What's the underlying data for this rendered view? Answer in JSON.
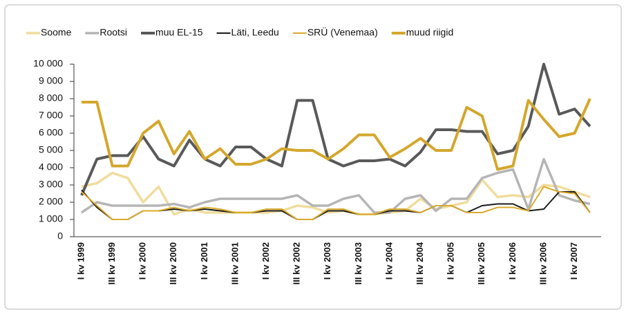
{
  "chart_data": {
    "type": "line",
    "categories": [
      "I kv 1999",
      null,
      "III kv 1999",
      null,
      "I kv 2000",
      null,
      "III kv 2000",
      null,
      "I kv 2001",
      null,
      "III kv 2001",
      null,
      "I kv 2002",
      null,
      "III kv 2002",
      null,
      "I kv 2003",
      null,
      "III kv 2003",
      null,
      "I kv 2004",
      null,
      "III kv 2004",
      null,
      "I kv 2005",
      null,
      "III kv 2005",
      null,
      "I kv 2006",
      null,
      "III kv 2006",
      null,
      "I kv 2007",
      null
    ],
    "series": [
      {
        "name": "Soome",
        "color": "#f0dc9c",
        "width": 3.5,
        "values": [
          2900,
          3100,
          3700,
          3400,
          2000,
          2900,
          1300,
          1600,
          1400,
          1400,
          1400,
          1400,
          1400,
          1500,
          1800,
          1700,
          1400,
          1500,
          1300,
          1300,
          1400,
          1500,
          2200,
          1600,
          1800,
          2000,
          3300,
          2300,
          2400,
          2300,
          3000,
          2900,
          2600,
          2300
        ]
      },
      {
        "name": "Rootsi",
        "color": "#b5b5b5",
        "width": 3.5,
        "values": [
          1400,
          2000,
          1800,
          1800,
          1800,
          1800,
          1900,
          1700,
          2000,
          2200,
          2200,
          2200,
          2200,
          2200,
          2400,
          1800,
          1800,
          2200,
          2400,
          1400,
          1400,
          2200,
          2400,
          1500,
          2200,
          2200,
          3400,
          3700,
          3900,
          1600,
          4500,
          2400,
          2100,
          1900
        ]
      },
      {
        "name": "muu EL-15",
        "color": "#595959",
        "width": 4,
        "values": [
          2400,
          4500,
          4700,
          4700,
          5800,
          4500,
          4100,
          5600,
          4500,
          4100,
          5200,
          5200,
          4500,
          4100,
          7900,
          7900,
          4500,
          4100,
          4400,
          4400,
          4500,
          4100,
          4900,
          6200,
          6200,
          6100,
          6100,
          4800,
          5000,
          6400,
          10000,
          7100,
          7400,
          6400
        ]
      },
      {
        "name": "Läti, Leedu",
        "color": "#1a1a1a",
        "width": 2,
        "values": [
          2700,
          1700,
          1000,
          1000,
          1500,
          1500,
          1600,
          1500,
          1600,
          1500,
          1400,
          1400,
          1500,
          1500,
          1000,
          1000,
          1500,
          1500,
          1300,
          1300,
          1500,
          1500,
          1400,
          1800,
          1800,
          1400,
          1800,
          1900,
          1900,
          1500,
          1600,
          2600,
          2600,
          1400
        ]
      },
      {
        "name": "SRÜ (Venemaa)",
        "color": "#d9aa2e",
        "width": 2,
        "values": [
          2600,
          1800,
          1000,
          1000,
          1500,
          1500,
          1700,
          1500,
          1700,
          1600,
          1400,
          1400,
          1600,
          1600,
          1000,
          1000,
          1600,
          1600,
          1300,
          1300,
          1600,
          1600,
          1400,
          1800,
          1800,
          1400,
          1400,
          1700,
          1700,
          1500,
          2900,
          2600,
          2500,
          1400
        ]
      },
      {
        "name": "muud riigid",
        "color": "#d4a72c",
        "width": 4,
        "values": [
          7800,
          7800,
          4100,
          4100,
          6000,
          6700,
          4800,
          6100,
          4500,
          5100,
          4200,
          4200,
          4500,
          5100,
          5000,
          5000,
          4500,
          5100,
          5900,
          5900,
          4600,
          5100,
          5700,
          5000,
          5000,
          7500,
          7000,
          3900,
          4100,
          7900,
          6800,
          5800,
          6000,
          8000
        ]
      }
    ],
    "ylim": [
      0,
      10000
    ],
    "yticks": [
      0,
      {
        "value": 1000,
        "label": "1 000"
      },
      {
        "value": 2000,
        "label": "2 000"
      },
      {
        "value": 3000,
        "label": "3 000"
      },
      {
        "value": 4000,
        "label": "4 000"
      },
      {
        "value": 5000,
        "label": "5 000"
      },
      {
        "value": 6000,
        "label": "6 000"
      },
      {
        "value": 7000,
        "label": "7 000"
      },
      {
        "value": 8000,
        "label": "8 000"
      },
      {
        "value": 9000,
        "label": "9 000"
      },
      {
        "value": 10000,
        "label": "10 000"
      }
    ]
  }
}
